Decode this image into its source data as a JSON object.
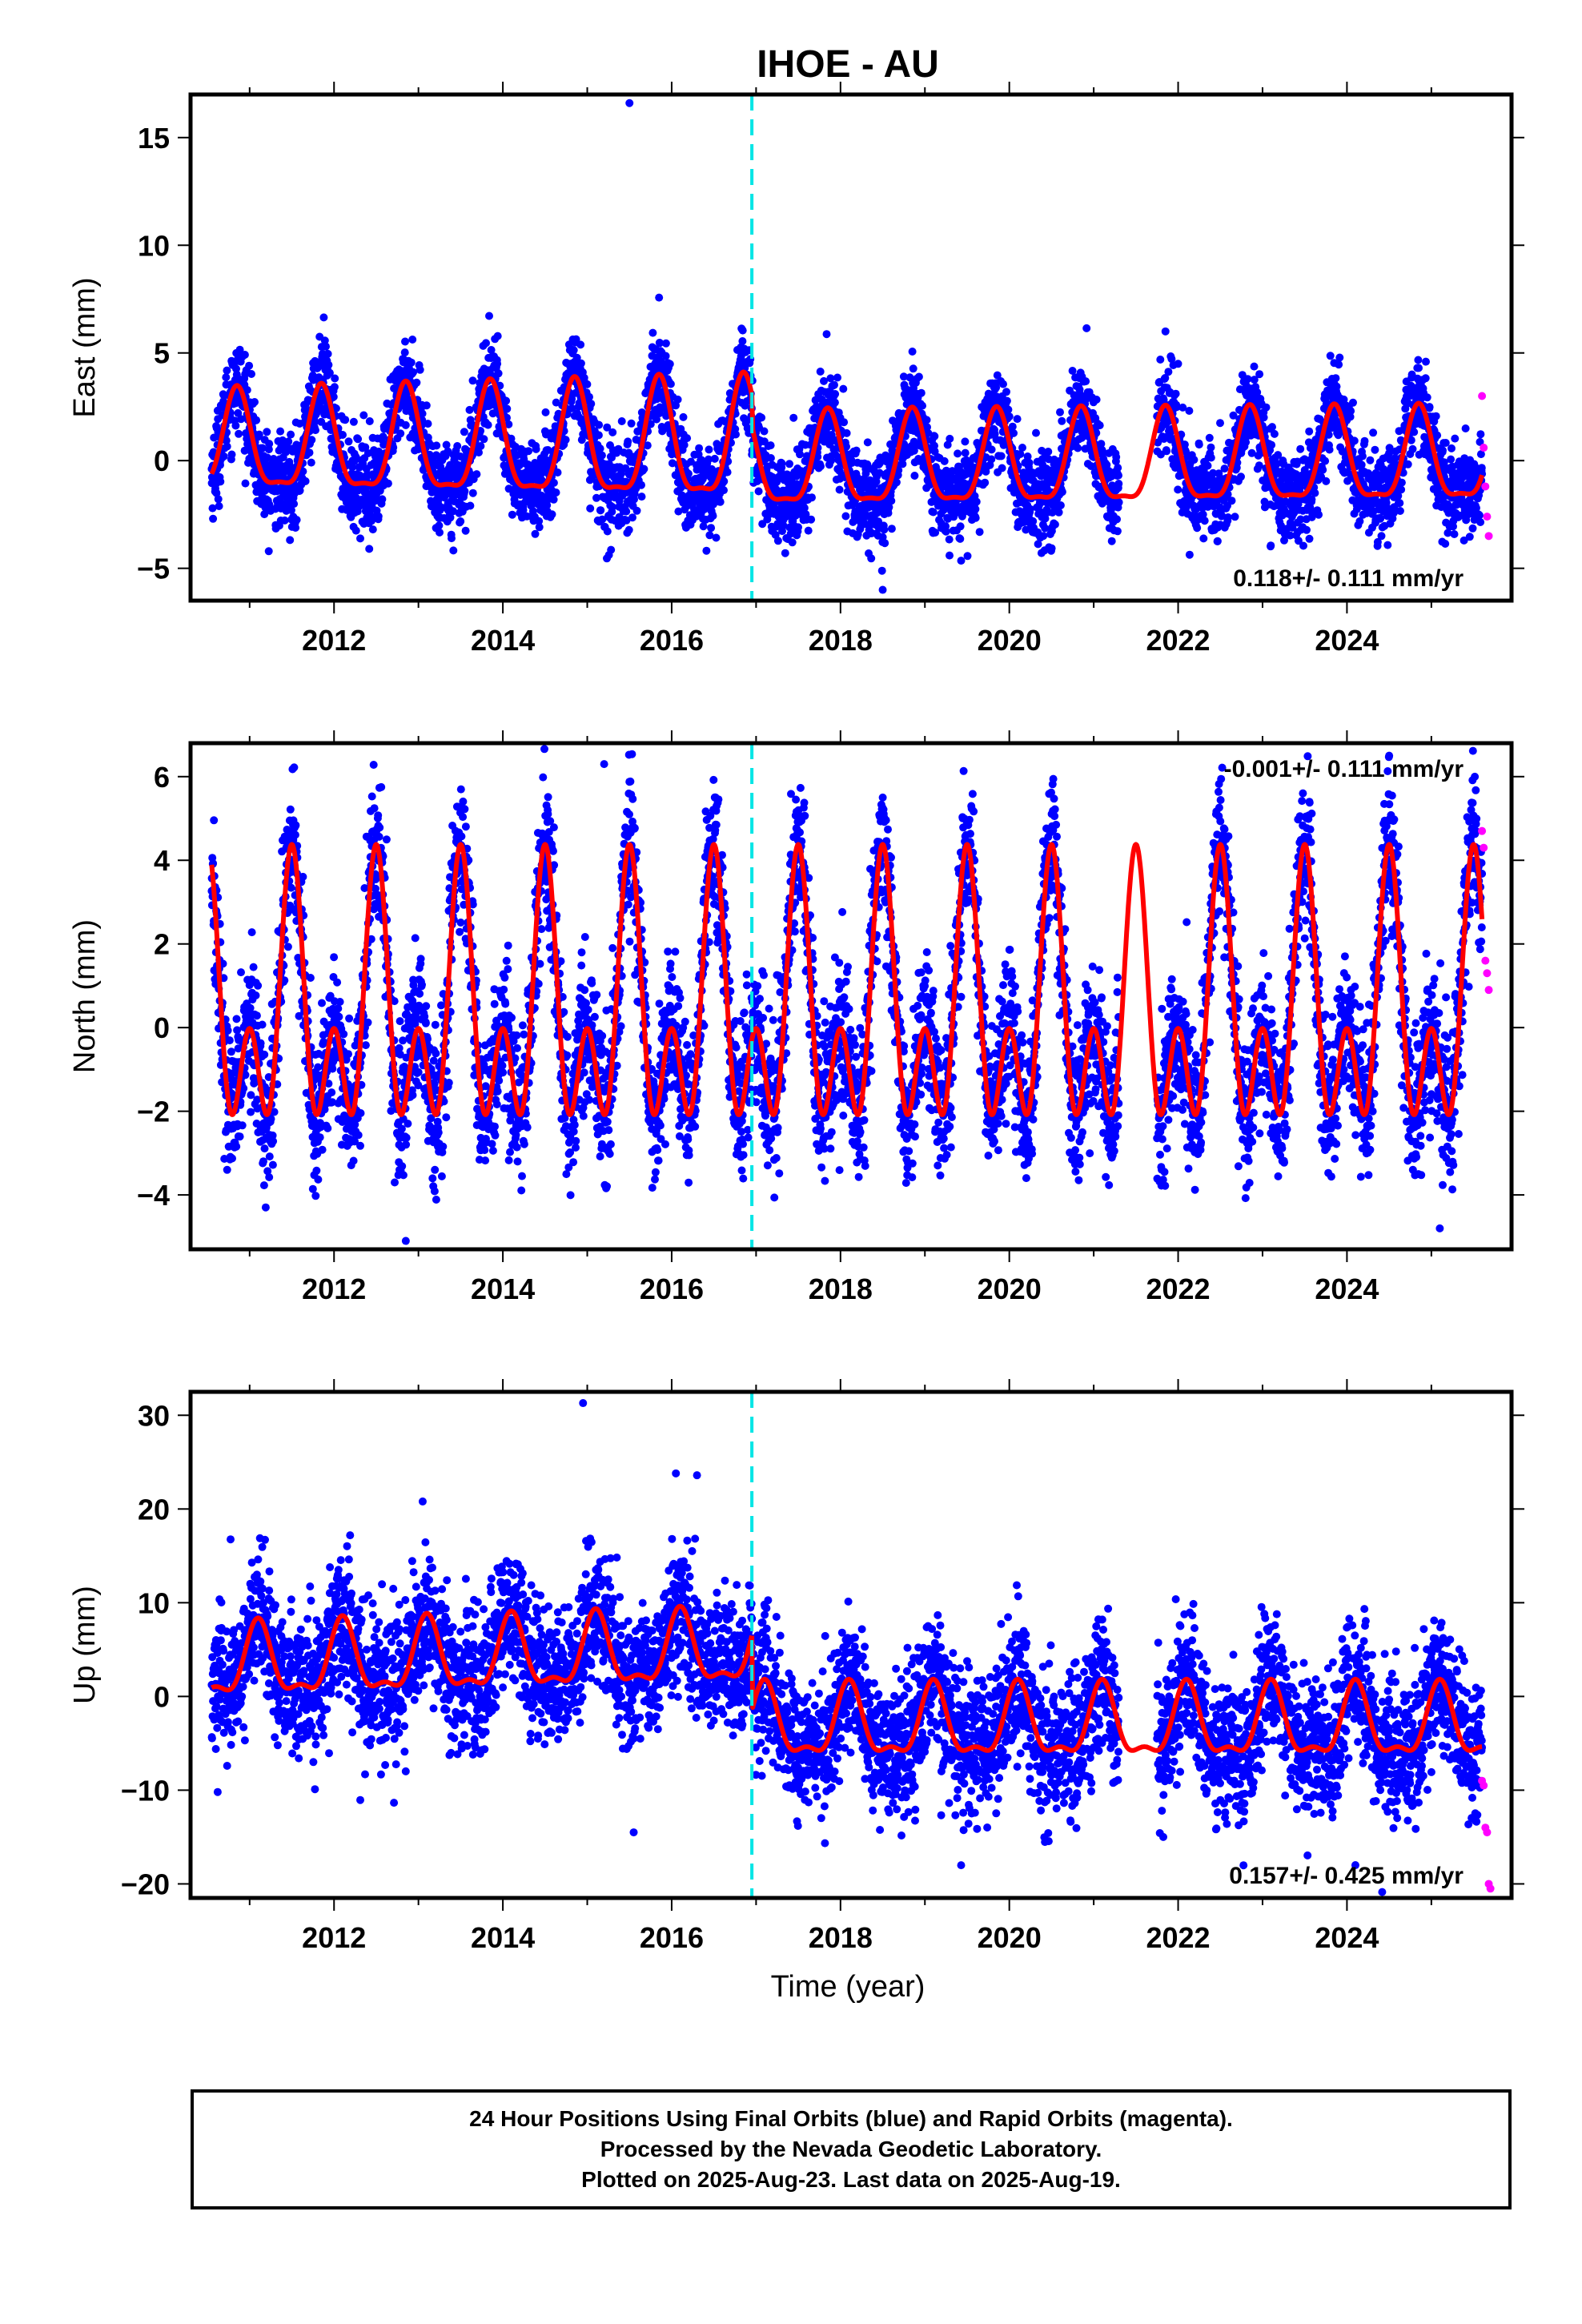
{
  "title": "IHOE - AU",
  "x_axis_label": "Time (year)",
  "footer_lines": [
    "24 Hour Positions Using Final Orbits (blue) and Rapid Orbits (magenta).",
    "Processed by the Nevada Geodetic Laboratory.",
    "Plotted on 2025-Aug-23. Last data on 2025-Aug-19."
  ],
  "colors": {
    "final_orbits": "#0000ff",
    "rapid_orbits": "#ff00ff",
    "model_fit": "#ff0000",
    "equipment_change": "#00e5e5"
  },
  "chart_data": [
    {
      "type": "scatter",
      "component": "east",
      "ylabel": "East (mm)",
      "xlim": [
        2010.3,
        2025.95
      ],
      "ylim": [
        -6.5,
        17
      ],
      "xticks": [
        2012,
        2014,
        2016,
        2018,
        2020,
        2022,
        2024
      ],
      "yticks": [
        -5,
        0,
        5,
        10,
        15
      ],
      "rate_label": "0.118+/- 0.111 mm/yr",
      "equipment_change_x": 2016.95,
      "model": {
        "segments": [
          {
            "x_start": 2010.55,
            "x_end": 2016.95,
            "offset": 0.6,
            "slope": 0.0,
            "amplitude": 2.2,
            "amp_growth": 0.08,
            "phase_year": 2010.85,
            "semiannual": 0.3
          },
          {
            "x_start": 2016.95,
            "x_end": 2025.6,
            "offset": -0.3,
            "slope": 0.03,
            "amplitude": 2.1,
            "amp_growth": 0.0,
            "phase_year": 2010.85,
            "semiannual": 0.3
          }
        ]
      },
      "scatter_noise": 1.05,
      "outliers": [
        {
          "x": 2015.5,
          "y": 16.6
        },
        {
          "x": 2021.85,
          "y": 6.0
        },
        {
          "x": 2018.5,
          "y": -6.0
        }
      ],
      "rapid_points": [
        {
          "x": 2025.6,
          "y": 3.0
        },
        {
          "x": 2025.62,
          "y": 0.6
        },
        {
          "x": 2025.64,
          "y": -1.2
        },
        {
          "x": 2025.66,
          "y": -2.6
        },
        {
          "x": 2025.68,
          "y": -3.5
        }
      ]
    },
    {
      "type": "scatter",
      "component": "north",
      "ylabel": "North (mm)",
      "xlim": [
        2010.3,
        2025.95
      ],
      "ylim": [
        -5.3,
        6.8
      ],
      "xticks": [
        2012,
        2014,
        2016,
        2018,
        2020,
        2022,
        2024
      ],
      "yticks": [
        -4,
        -2,
        0,
        2,
        4,
        6
      ],
      "rate_label": "-0.001+/- 0.111 mm/yr",
      "equipment_change_x": 2016.95,
      "model": {
        "segments": [
          {
            "x_start": 2010.55,
            "x_end": 2025.6,
            "offset": 0.2,
            "slope": 0.0,
            "amplitude": 2.2,
            "amp_growth": 0.0,
            "phase_year": 2010.5,
            "semiannual": 0.9
          }
        ]
      },
      "scatter_noise": 0.9,
      "outliers": [
        {
          "x": 2015.2,
          "y": 6.3
        },
        {
          "x": 2024.5,
          "y": 6.5
        },
        {
          "x": 2012.85,
          "y": -5.1
        },
        {
          "x": 2025.1,
          "y": -4.8
        }
      ],
      "rapid_points": [
        {
          "x": 2025.6,
          "y": 4.7
        },
        {
          "x": 2025.62,
          "y": 4.3
        },
        {
          "x": 2025.64,
          "y": 1.6
        },
        {
          "x": 2025.66,
          "y": 1.3
        },
        {
          "x": 2025.68,
          "y": 0.9
        }
      ]
    },
    {
      "type": "scatter",
      "component": "up",
      "ylabel": "Up (mm)",
      "xlim": [
        2010.3,
        2025.95
      ],
      "ylim": [
        -21.5,
        32.5
      ],
      "xticks": [
        2012,
        2014,
        2016,
        2018,
        2020,
        2022,
        2024
      ],
      "yticks": [
        -20,
        -10,
        0,
        10,
        20,
        30
      ],
      "rate_label": "0.157+/- 0.425 mm/yr",
      "equipment_change_x": 2016.95,
      "model": {
        "segments": [
          {
            "x_start": 2010.55,
            "x_end": 2016.95,
            "offset": 3.2,
            "slope": 0.25,
            "amplitude": 3.6,
            "amp_growth": 0.0,
            "phase_year": 2011.1,
            "semiannual": 0.4
          },
          {
            "x_start": 2016.95,
            "x_end": 2025.6,
            "offset": -3.2,
            "slope": 0.0,
            "amplitude": 3.6,
            "amp_growth": 0.0,
            "phase_year": 2011.1,
            "semiannual": 0.4
          }
        ]
      },
      "scatter_noise": 3.6,
      "outliers": [
        {
          "x": 2014.95,
          "y": 31.3
        },
        {
          "x": 2016.05,
          "y": 23.8
        },
        {
          "x": 2016.3,
          "y": 23.6
        },
        {
          "x": 2013.05,
          "y": 20.8
        },
        {
          "x": 2015.55,
          "y": -14.5
        },
        {
          "x": 2024.1,
          "y": -18.0
        }
      ],
      "rapid_points": [
        {
          "x": 2025.6,
          "y": -9.0
        },
        {
          "x": 2025.62,
          "y": -9.5
        },
        {
          "x": 2025.64,
          "y": -14.0
        },
        {
          "x": 2025.66,
          "y": -14.5
        },
        {
          "x": 2025.68,
          "y": -20.0
        },
        {
          "x": 2025.7,
          "y": -20.5
        }
      ]
    }
  ]
}
